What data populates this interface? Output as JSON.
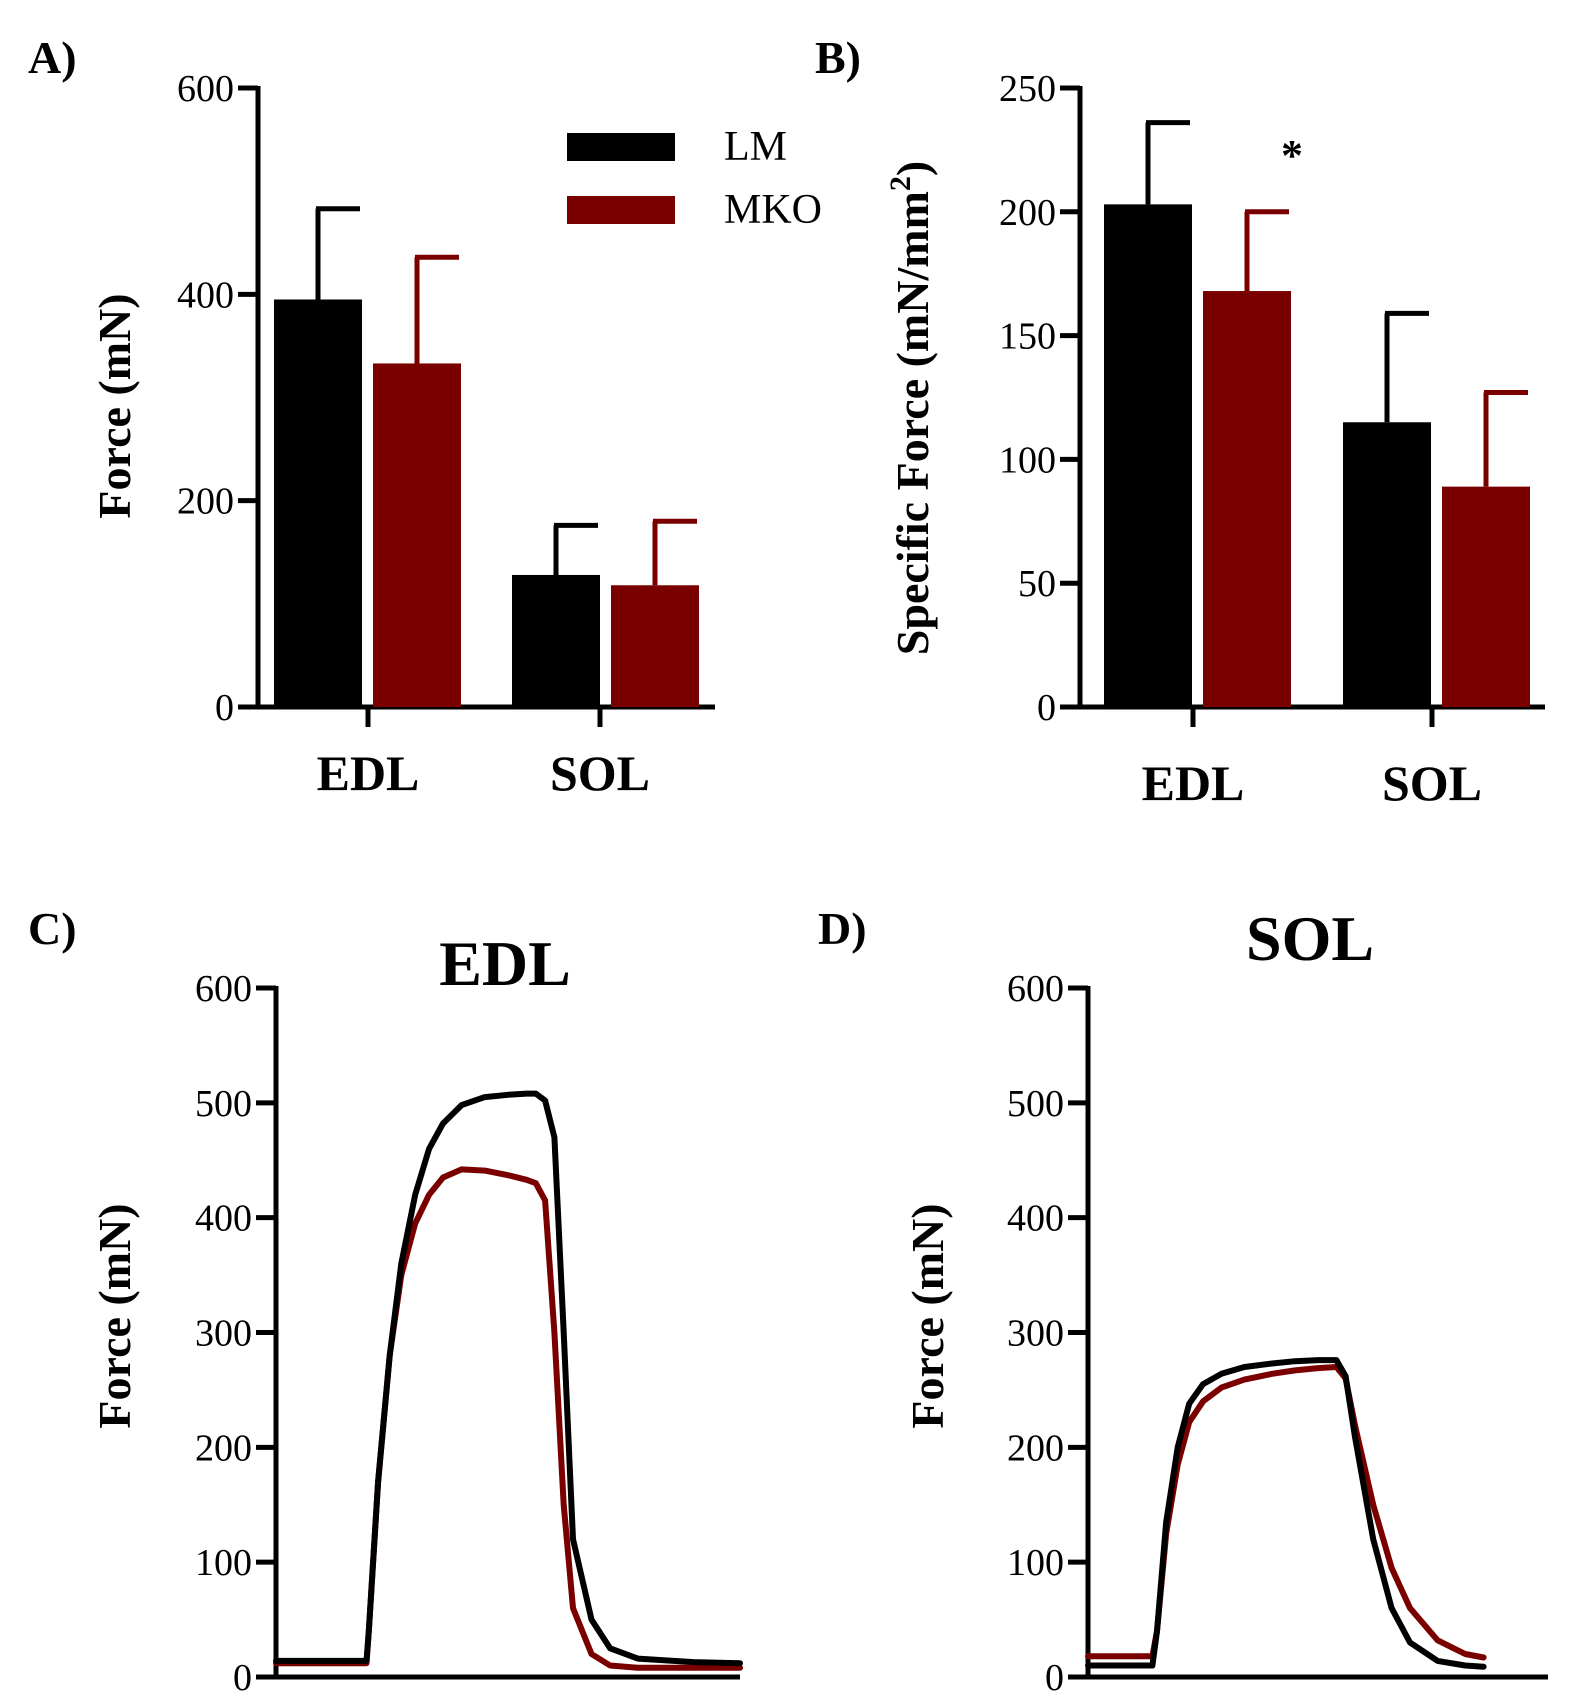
{
  "colors": {
    "LM": "#000000",
    "MKO": "#7a0000",
    "axis": "#000000"
  },
  "legend": {
    "items": [
      {
        "label": "LM",
        "color": "#000000"
      },
      {
        "label": "MKO",
        "color": "#7a0000"
      }
    ]
  },
  "chart_data": [
    {
      "id": "A",
      "panel_label": "A)",
      "type": "bar",
      "title": "",
      "xlabel": "",
      "ylabel": "Force (mN)",
      "ylim": [
        0,
        600
      ],
      "yticks": [
        0,
        200,
        400,
        600
      ],
      "ytick_labels": [
        "0",
        "200",
        "400",
        "600"
      ],
      "categories": [
        "EDL",
        "SOL"
      ],
      "series": [
        {
          "name": "LM",
          "values": [
            395,
            128
          ],
          "errors": [
            88,
            48
          ]
        },
        {
          "name": "MKO",
          "values": [
            333,
            118
          ],
          "errors": [
            103,
            62
          ]
        }
      ],
      "annotations": [],
      "legend_position": "top-right"
    },
    {
      "id": "B",
      "panel_label": "B)",
      "type": "bar",
      "title": "",
      "xlabel": "",
      "ylabel": "Specific Force (mN/mm",
      "ylabel_superscript": "2",
      "ylabel_suffix": ")",
      "ylim": [
        0,
        250
      ],
      "yticks": [
        0,
        50,
        100,
        150,
        200,
        250
      ],
      "ytick_labels": [
        "0",
        "50",
        "100",
        "150",
        "200",
        "250"
      ],
      "categories": [
        "EDL",
        "SOL"
      ],
      "series": [
        {
          "name": "LM",
          "values": [
            203,
            115
          ],
          "errors": [
            33,
            44
          ]
        },
        {
          "name": "MKO",
          "values": [
            168,
            89
          ],
          "errors": [
            32,
            38
          ]
        }
      ],
      "annotations": [
        {
          "text": "*",
          "category": "EDL",
          "series": "MKO"
        }
      ]
    },
    {
      "id": "C",
      "panel_label": "C)",
      "type": "line",
      "title": "EDL",
      "xlabel": "",
      "ylabel": "Force (mN)",
      "ylim": [
        0,
        600
      ],
      "yticks": [
        0,
        100,
        200,
        300,
        400,
        500,
        600
      ],
      "ytick_labels": [
        "0",
        "100",
        "200",
        "300",
        "400",
        "500",
        "600"
      ],
      "xlim": [
        0,
        1000
      ],
      "series": [
        {
          "name": "LM",
          "x": [
            0,
            195,
            200,
            220,
            245,
            270,
            300,
            330,
            360,
            400,
            450,
            500,
            540,
            560,
            580,
            600,
            620,
            640,
            680,
            720,
            780,
            900,
            1000
          ],
          "y": [
            14,
            14,
            40,
            170,
            280,
            360,
            420,
            460,
            482,
            498,
            505,
            507,
            508,
            508,
            502,
            470,
            300,
            120,
            50,
            25,
            16,
            13,
            12
          ]
        },
        {
          "name": "MKO",
          "x": [
            0,
            195,
            200,
            220,
            245,
            270,
            300,
            330,
            360,
            400,
            450,
            500,
            540,
            560,
            580,
            600,
            620,
            640,
            680,
            720,
            780,
            900,
            1000
          ],
          "y": [
            12,
            12,
            40,
            170,
            280,
            350,
            395,
            420,
            435,
            442,
            441,
            437,
            433,
            430,
            415,
            300,
            150,
            60,
            20,
            10,
            8,
            8,
            8
          ]
        }
      ]
    },
    {
      "id": "D",
      "panel_label": "D)",
      "type": "line",
      "title": "SOL",
      "xlabel": "",
      "ylabel": "Force (mN)",
      "ylim": [
        0,
        600
      ],
      "yticks": [
        0,
        100,
        200,
        300,
        400,
        500,
        600
      ],
      "ytick_labels": [
        "0",
        "100",
        "200",
        "300",
        "400",
        "500",
        "600"
      ],
      "xlim": [
        0,
        1000
      ],
      "series": [
        {
          "name": "LM",
          "x": [
            0,
            140,
            150,
            170,
            195,
            220,
            250,
            290,
            340,
            400,
            450,
            500,
            540,
            560,
            580,
            620,
            660,
            700,
            760,
            820,
            860
          ],
          "y": [
            10,
            10,
            40,
            135,
            200,
            238,
            255,
            264,
            270,
            273,
            275,
            276,
            276,
            262,
            210,
            120,
            60,
            30,
            14,
            10,
            9
          ]
        },
        {
          "name": "MKO",
          "x": [
            0,
            140,
            150,
            170,
            195,
            220,
            250,
            290,
            340,
            400,
            450,
            500,
            540,
            560,
            580,
            620,
            660,
            700,
            760,
            820,
            860
          ],
          "y": [
            18,
            18,
            40,
            125,
            185,
            222,
            240,
            252,
            259,
            264,
            267,
            269,
            270,
            260,
            220,
            150,
            95,
            60,
            32,
            20,
            17
          ]
        }
      ]
    }
  ]
}
